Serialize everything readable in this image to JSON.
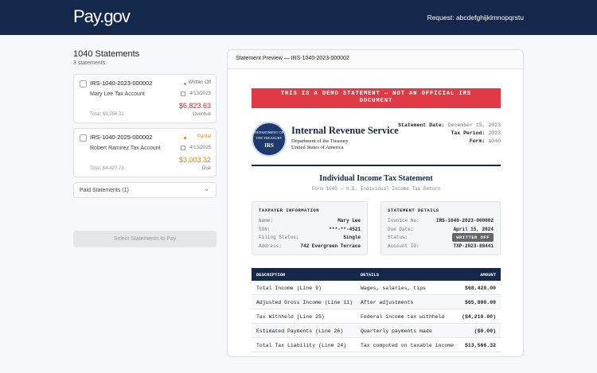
{
  "header": {
    "logo": "Pay.gov",
    "request": "Request: abcdefghijklmnopqrstu"
  },
  "sidebar": {
    "title": "1040 Statements",
    "count": "3 statements",
    "statements": [
      {
        "id": "IRS-1040-2023-000002",
        "status": "Written Off",
        "account": "Mary Lee Tax Account",
        "date": "4/13/2023",
        "balance": "$6,823.63",
        "total": "Total: $9,356.32",
        "due_status": "Overdue"
      },
      {
        "id": "IRS-1040-2025-000002",
        "status": "Partial",
        "account": "Robert Ramirez Tax Account",
        "date": "4/13/2025",
        "balance": "$3,003.32",
        "total": "Total: $4,427.73",
        "due_status": "Due"
      }
    ],
    "paid_toggle": "Paid Statements (1)",
    "pay_button": "Select Statements to Pay"
  },
  "preview": {
    "title": "Statement Preview — IRS-1040-2023-000002",
    "banner": "THIS IS A DEMO STATEMENT — NOT AN OFFICIAL IRS DOCUMENT",
    "seal": {
      "top": "DEPARTMENT OF",
      "middle": "THE TREASURY",
      "bottom": "IRS"
    },
    "agency": {
      "name": "Internal Revenue Service",
      "line1": "Department of the Treasury",
      "line2": "United States of America"
    },
    "meta": [
      [
        "Statement Date:",
        "December 15, 2023"
      ],
      [
        "Tax Period:",
        "2023"
      ],
      [
        "Form:",
        "1040"
      ]
    ],
    "doc_title": "Individual Income Tax Statement",
    "doc_subtitle": "Form 1040 — U.S. Individual Income Tax Return",
    "taxpayer": {
      "heading": "TAXPAYER INFORMATION",
      "rows": [
        [
          "Name:",
          "Mary Lee"
        ],
        [
          "SSN:",
          "***-**-4521"
        ],
        [
          "Filing Status:",
          "Single"
        ],
        [
          "Address:",
          "742 Evergreen Terrace"
        ]
      ]
    },
    "details": {
      "heading": "STATEMENT DETAILS",
      "rows": [
        [
          "Invoice No:",
          "IRS-1040-2023-000002"
        ],
        [
          "Due Date:",
          "April 15, 2024"
        ],
        [
          "Status:",
          "WRITTEN OFF"
        ],
        [
          "Account ID:",
          "TXP-2023-88441"
        ]
      ]
    },
    "table": {
      "columns": [
        "DESCRIPTION",
        "DETAILS",
        "AMOUNT"
      ],
      "rows": [
        [
          "Total Income (Line 9)",
          "Wages, salaries, tips",
          "$68,420.00"
        ],
        [
          "Adjusted Gross Income (Line 11)",
          "After adjustments",
          "$65,890.00"
        ],
        [
          "Tax Withheld (Line 25)",
          "Federal income tax withheld",
          "($4,210.00)"
        ],
        [
          "Estimated Payments (Line 26)",
          "Quarterly payments made",
          "($0.00)"
        ],
        [
          "Total Tax Liability (Line 24)",
          "Tax computed on taxable income",
          "$13,566.32"
        ]
      ]
    }
  }
}
